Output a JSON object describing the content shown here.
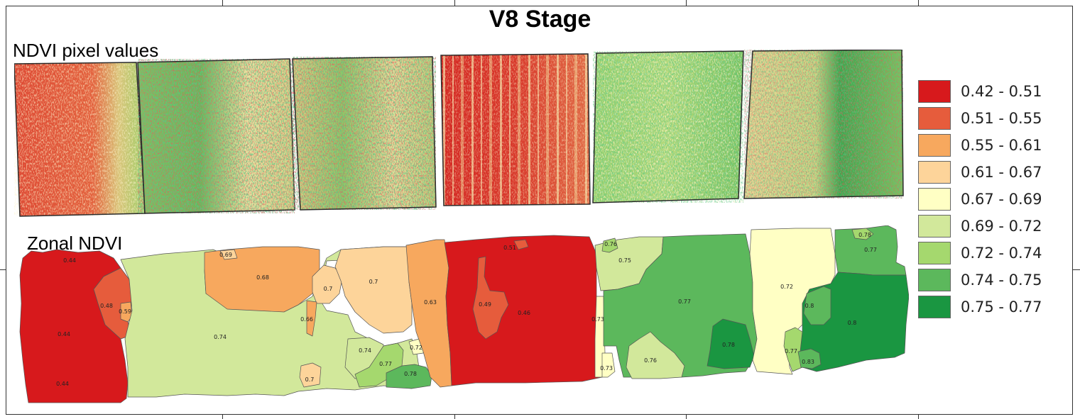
{
  "title": "V8 Stage",
  "panels": {
    "pixel": {
      "label": "NDVI pixel values"
    },
    "zonal": {
      "label": "Zonal NDVI"
    }
  },
  "colors": {
    "class_1": "#d7191c",
    "class_2": "#e65c3c",
    "class_3": "#f7a85e",
    "class_4": "#fdd49a",
    "class_5": "#ffffc4",
    "class_6": "#d2e89b",
    "class_7": "#a5d86e",
    "class_8": "#5cb85c",
    "class_9": "#1a9641"
  },
  "legend": {
    "items": [
      {
        "label": "0.42 - 0.51",
        "color": "#d7191c"
      },
      {
        "label": "0.51 - 0.55",
        "color": "#e65c3c"
      },
      {
        "label": "0.55 - 0.61",
        "color": "#f7a85e"
      },
      {
        "label": "0.61 - 0.67",
        "color": "#fdd49a"
      },
      {
        "label": "0.67 - 0.69",
        "color": "#ffffc4"
      },
      {
        "label": "0.69 - 0.72",
        "color": "#d2e89b"
      },
      {
        "label": "0.72 - 0.74",
        "color": "#a5d86e"
      },
      {
        "label": "0.74 - 0.75",
        "color": "#5cb85c"
      },
      {
        "label": "0.75 - 0.77",
        "color": "#1a9641"
      }
    ]
  },
  "zones": [
    {
      "label": "0.44",
      "value": 0.44
    },
    {
      "label": "0.44",
      "value": 0.44
    },
    {
      "label": "0.44",
      "value": 0.44
    },
    {
      "label": "0.48",
      "value": 0.48
    },
    {
      "label": "0.59",
      "value": 0.59
    },
    {
      "label": "0.74",
      "value": 0.74
    },
    {
      "label": "0.69",
      "value": 0.69
    },
    {
      "label": "0.68",
      "value": 0.68
    },
    {
      "label": "0.7",
      "value": 0.7
    },
    {
      "label": "0.7",
      "value": 0.7
    },
    {
      "label": "0.66",
      "value": 0.66
    },
    {
      "label": "0.7",
      "value": 0.7
    },
    {
      "label": "0.74",
      "value": 0.74
    },
    {
      "label": "0.77",
      "value": 0.77
    },
    {
      "label": "0.78",
      "value": 0.78
    },
    {
      "label": "0.72",
      "value": 0.72
    },
    {
      "label": "0.63",
      "value": 0.63
    },
    {
      "label": "0.51",
      "value": 0.51
    },
    {
      "label": "0.49",
      "value": 0.49
    },
    {
      "label": "0.46",
      "value": 0.46
    },
    {
      "label": "0.76",
      "value": 0.76
    },
    {
      "label": "0.75",
      "value": 0.75
    },
    {
      "label": "0.73",
      "value": 0.73
    },
    {
      "label": "0.73",
      "value": 0.73
    },
    {
      "label": "0.77",
      "value": 0.77
    },
    {
      "label": "0.76",
      "value": 0.76
    },
    {
      "label": "0.78",
      "value": 0.78
    },
    {
      "label": "0.72",
      "value": 0.72
    },
    {
      "label": "0.78",
      "value": 0.78
    },
    {
      "label": "0.77",
      "value": 0.77
    },
    {
      "label": "0.8",
      "value": 0.8
    },
    {
      "label": "0.8",
      "value": 0.8
    },
    {
      "label": "0.77",
      "value": 0.77
    },
    {
      "label": "0.83",
      "value": 0.83
    }
  ]
}
